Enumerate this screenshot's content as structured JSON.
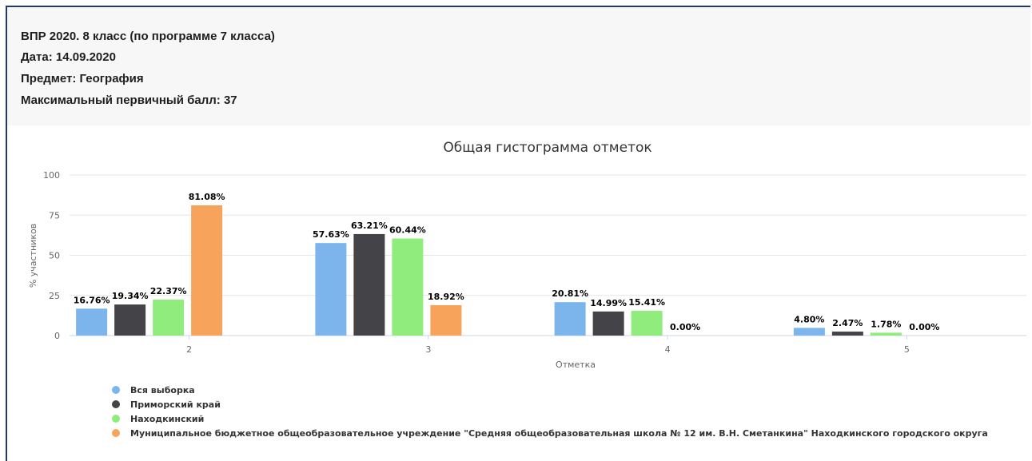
{
  "header": {
    "line1": "ВПР 2020. 8 класс (по программе 7 класса)",
    "line2": "Дата: 14.09.2020",
    "line3": "Предмет: География",
    "line4": "Максимальный первичный балл: 37"
  },
  "colors": {
    "header_background": "#f7f7f7",
    "frame_border": "#1f3a6e"
  },
  "chart_data": {
    "type": "bar",
    "title": "Общая гистограмма отметок",
    "xlabel": "Отметка",
    "ylabel": "% участников",
    "categories": [
      "2",
      "3",
      "4",
      "5"
    ],
    "ylim": [
      0,
      100
    ],
    "yticks": [
      0,
      25,
      50,
      75,
      100
    ],
    "grid": true,
    "legend_position": "bottom-left",
    "series": [
      {
        "name": "Вся выборка",
        "color": "#7cb5ec",
        "values": [
          16.76,
          57.63,
          20.81,
          4.8
        ],
        "labels": [
          "16.76%",
          "57.63%",
          "20.81%",
          "4.80%"
        ]
      },
      {
        "name": "Приморский край",
        "color": "#434348",
        "values": [
          19.34,
          63.21,
          14.99,
          2.47
        ],
        "labels": [
          "19.34%",
          "63.21%",
          "14.99%",
          "2.47%"
        ]
      },
      {
        "name": "Находкинский",
        "color": "#90ed7d",
        "values": [
          22.37,
          60.44,
          15.41,
          1.78
        ],
        "labels": [
          "22.37%",
          "60.44%",
          "15.41%",
          "1.78%"
        ]
      },
      {
        "name": "Муниципальное бюджетное общеобразовательное учреждение \"Средняя общеобразовательная школа № 12 им. В.Н. Сметанкина\" Находкинского городского округа",
        "color": "#f7a35c",
        "values": [
          81.08,
          18.92,
          0.0,
          0.0
        ],
        "labels": [
          "81.08%",
          "18.92%",
          "0.00%",
          "0.00%"
        ]
      }
    ]
  }
}
